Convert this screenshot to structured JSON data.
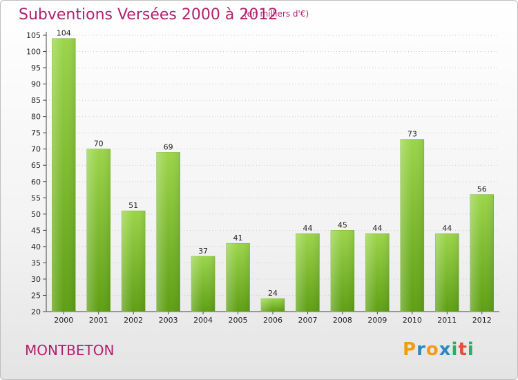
{
  "title": "Subventions Versées 2000 à 2012",
  "subtitle": "(en milliers d'€)",
  "place": "MONTBETON",
  "logo": {
    "text": "Proxiti",
    "letters": [
      "P",
      "r",
      "o",
      "x",
      "i",
      "t",
      "i"
    ],
    "colors": [
      "#f39c12",
      "#2e86c1",
      "#f39c12",
      "#2e86c1",
      "#27ae60",
      "#e74c3c",
      "#27ae60"
    ]
  },
  "colors": {
    "bar_top": "#9bd54a",
    "bar_bottom": "#5e9f14",
    "text_accent": "#b0206e",
    "grid": "#cccccc"
  },
  "chart_data": {
    "type": "bar",
    "categories": [
      "2000",
      "2001",
      "2002",
      "2003",
      "2004",
      "2005",
      "2006",
      "2007",
      "2008",
      "2009",
      "2010",
      "2011",
      "2012"
    ],
    "values": [
      104,
      70,
      51,
      69,
      37,
      41,
      24,
      44,
      45,
      44,
      73,
      44,
      56
    ],
    "data_labels": [
      "104",
      "70",
      "51",
      "69",
      "37",
      "41",
      "24",
      "44",
      "45",
      "44",
      "73",
      "44",
      "56"
    ],
    "ylim": [
      20,
      105
    ],
    "yticks": [
      20,
      25,
      30,
      35,
      40,
      45,
      50,
      55,
      60,
      65,
      70,
      75,
      80,
      85,
      90,
      95,
      100,
      105
    ],
    "grid": "horizontal dotted",
    "legend": "none",
    "xlabel": "",
    "ylabel": ""
  }
}
